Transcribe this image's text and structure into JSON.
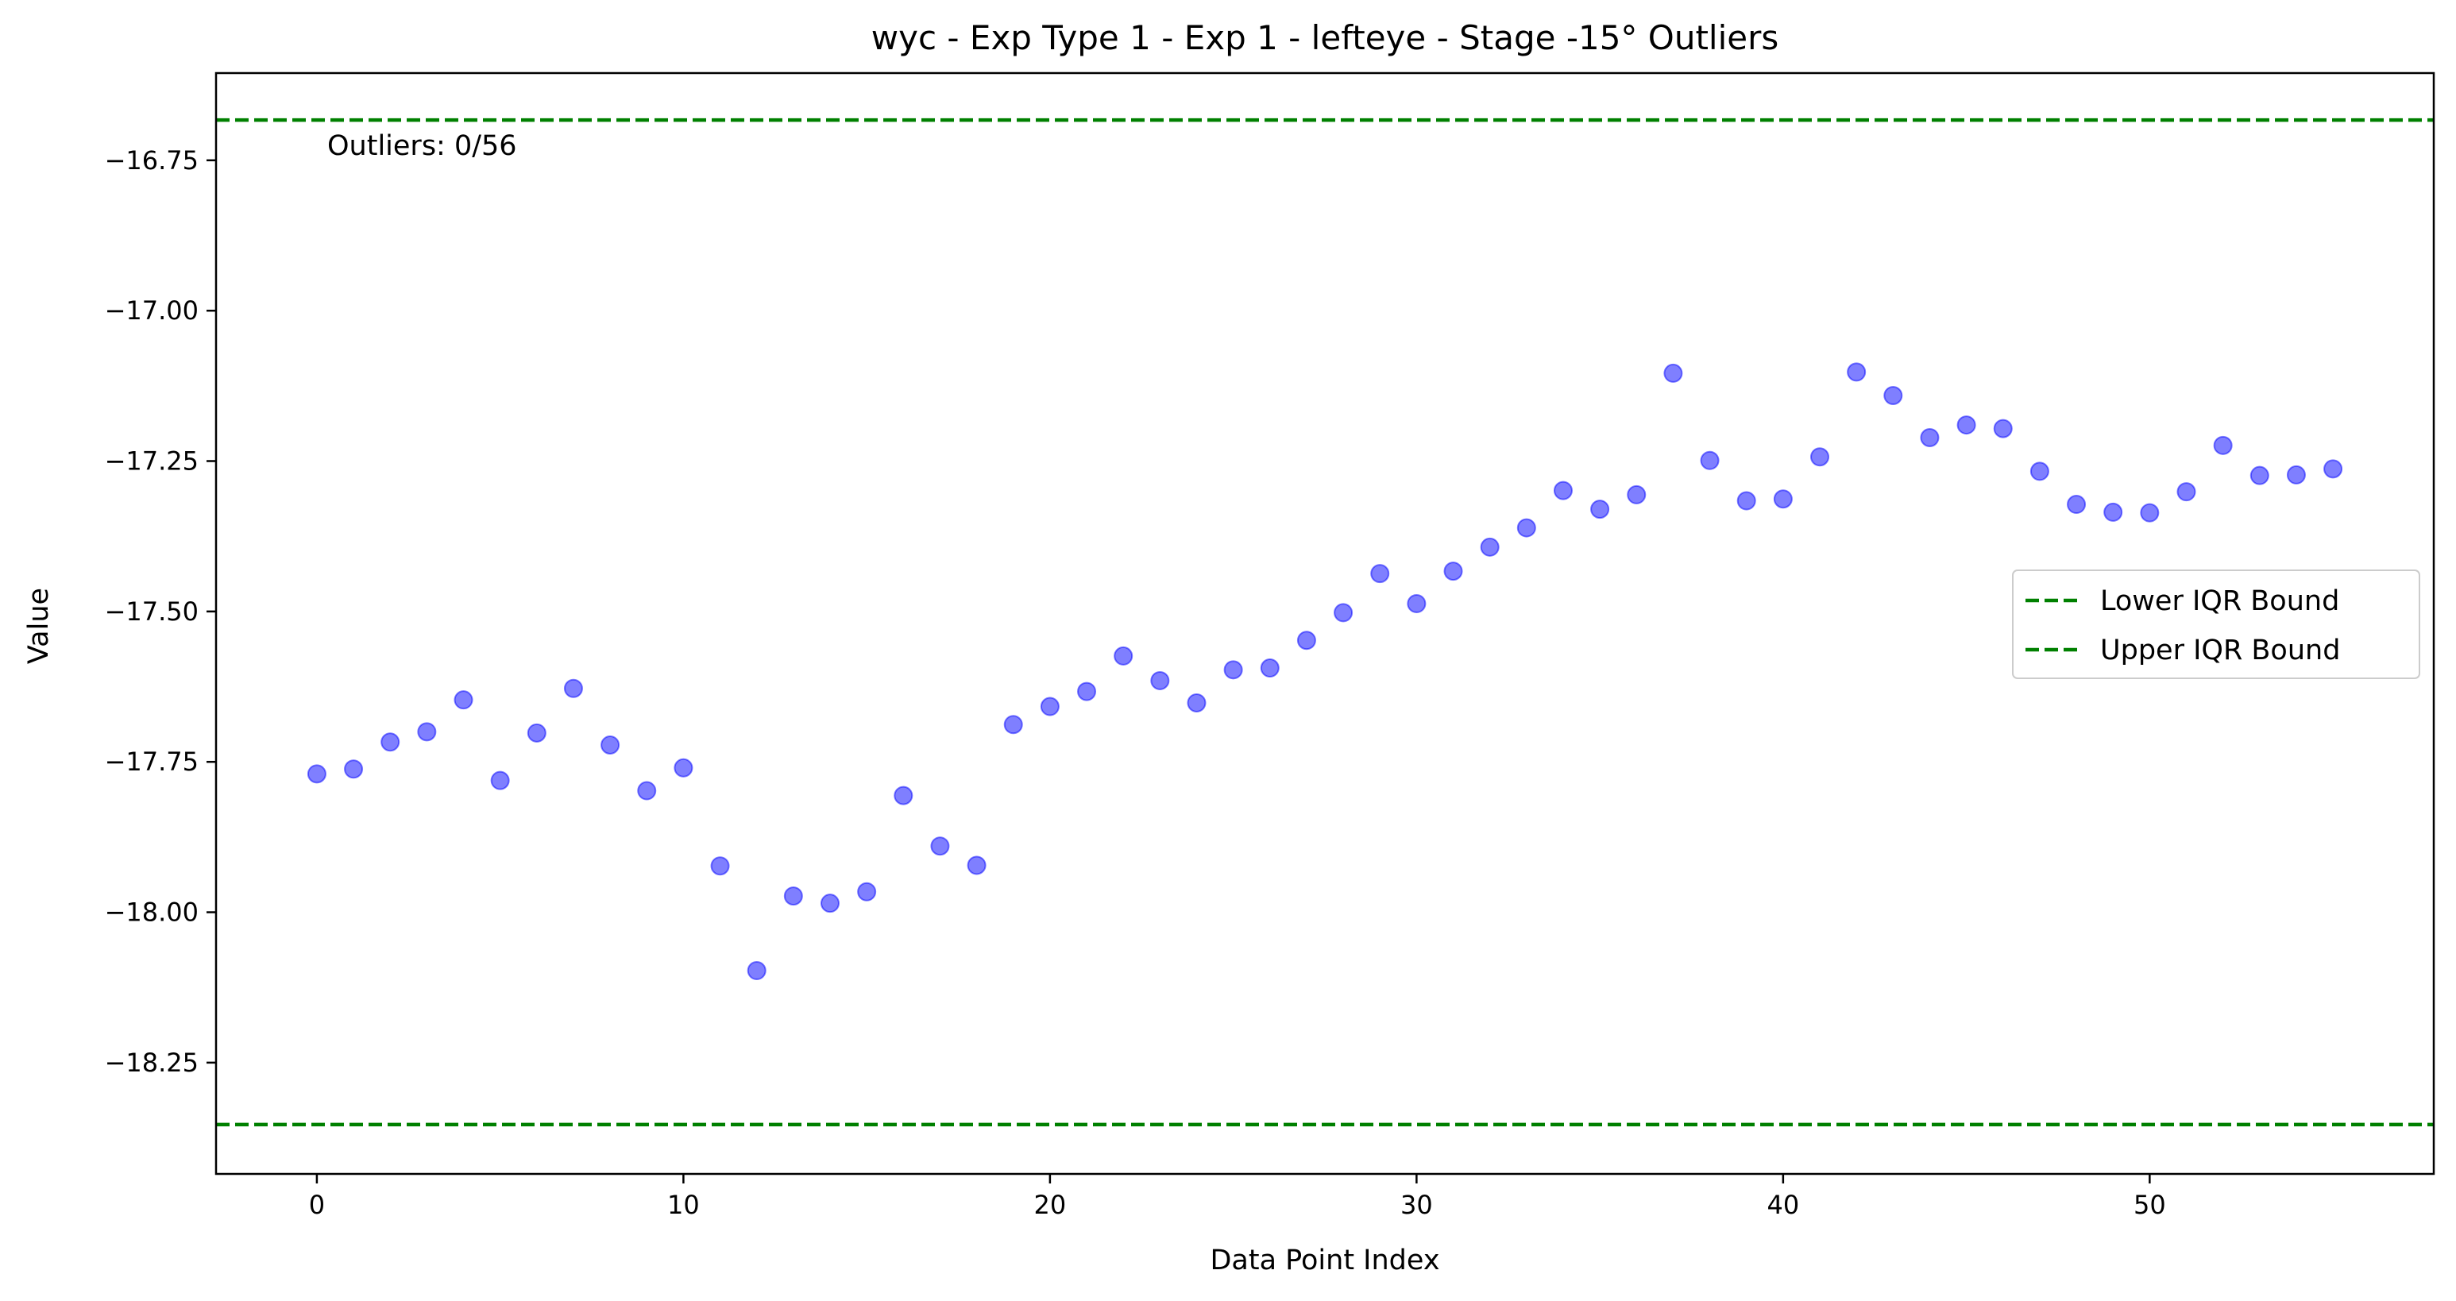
{
  "chart_data": {
    "type": "scatter",
    "title": "wyc - Exp Type 1 - Exp 1 - lefteye - Stage -15° Outliers",
    "xlabel": "Data Point Index",
    "ylabel": "Value",
    "xlim": [
      -2.75,
      57.75
    ],
    "ylim": [
      -18.435,
      -16.605
    ],
    "x_ticks": [
      0,
      10,
      20,
      30,
      40,
      50
    ],
    "y_ticks": [
      -16.75,
      -17.0,
      -17.25,
      -17.5,
      -17.75,
      -18.0,
      -18.25
    ],
    "x_tick_labels": [
      "0",
      "10",
      "20",
      "30",
      "40",
      "50"
    ],
    "y_tick_labels": [
      "−16.75",
      "−17.00",
      "−17.25",
      "−17.50",
      "−17.75",
      "−18.00",
      "−18.25"
    ],
    "grid": false,
    "legend_position": "center-right",
    "annotation": "Outliers: 0/56",
    "marker_color": "#0000ff",
    "points": {
      "x": [
        0,
        1,
        2,
        3,
        4,
        5,
        6,
        7,
        8,
        9,
        10,
        11,
        12,
        13,
        14,
        15,
        16,
        17,
        18,
        19,
        20,
        21,
        22,
        23,
        24,
        25,
        26,
        27,
        28,
        29,
        30,
        31,
        32,
        33,
        34,
        35,
        36,
        37,
        38,
        39,
        40,
        41,
        42,
        43,
        44,
        45,
        46,
        47,
        48,
        49,
        50,
        51,
        52,
        53,
        54,
        55
      ],
      "y": [
        -17.77,
        -17.762,
        -17.717,
        -17.7,
        -17.647,
        -17.781,
        -17.702,
        -17.628,
        -17.722,
        -17.798,
        -17.76,
        -17.923,
        -18.097,
        -17.973,
        -17.985,
        -17.966,
        -17.806,
        -17.89,
        -17.922,
        -17.688,
        -17.658,
        -17.633,
        -17.574,
        -17.615,
        -17.652,
        -17.597,
        -17.594,
        -17.548,
        -17.502,
        -17.437,
        -17.487,
        -17.433,
        -17.393,
        -17.361,
        -17.299,
        -17.33,
        -17.306,
        -17.104,
        -17.249,
        -17.316,
        -17.313,
        -17.243,
        -17.102,
        -17.141,
        -17.211,
        -17.19,
        -17.196,
        -17.267,
        -17.322,
        -17.335,
        -17.336,
        -17.301,
        -17.224,
        -17.274,
        -17.273,
        -17.263
      ]
    },
    "lines": [
      {
        "name": "Lower IQR Bound",
        "y": -18.353,
        "color": "#008000",
        "style": "dashed"
      },
      {
        "name": "Upper IQR Bound",
        "y": -16.683,
        "color": "#008000",
        "style": "dashed"
      }
    ]
  }
}
